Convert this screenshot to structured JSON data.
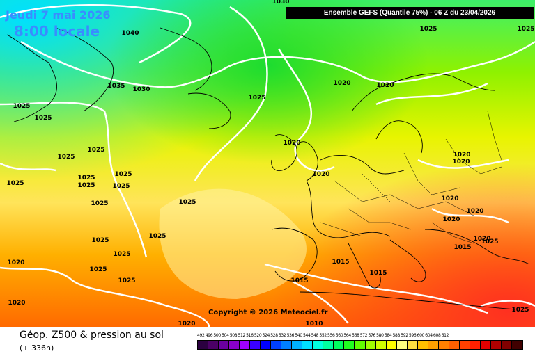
{
  "header": {
    "date": "Jeudi 7 mai 2026",
    "local_time": "8:00 locale",
    "model_info": "Ensemble GEFS  (Quantile 75%) - 06 Z du 23/04/2026"
  },
  "copyright": "Copyright © 2026 Meteociel.fr",
  "footer": {
    "parameter": "Géop. Z500 & pression au sol",
    "lead_time": "(+ 336h)"
  },
  "pressure_labels": [
    "1030",
    "1040",
    "1035",
    "1030",
    "1025",
    "1025",
    "1025",
    "1025",
    "1020",
    "1020",
    "1025",
    "1025",
    "1025",
    "1025",
    "1025",
    "1025",
    "1025",
    "1025",
    "1025",
    "1025",
    "1020",
    "1020",
    "1025",
    "1025",
    "1025",
    "1025",
    "1020",
    "1020",
    "1020",
    "1020",
    "1020",
    "1020",
    "1020",
    "1020",
    "1020",
    "1015",
    "1015",
    "1015",
    "1015",
    "1010",
    "1025",
    "1025",
    "1025"
  ],
  "legend": {
    "values": [
      "492",
      "496",
      "500",
      "504",
      "508",
      "512",
      "516",
      "520",
      "524",
      "528",
      "532",
      "536",
      "540",
      "544",
      "548",
      "552",
      "556",
      "560",
      "564",
      "568",
      "572",
      "576",
      "580",
      "584",
      "588",
      "592",
      "596",
      "600",
      "604",
      "608",
      "612"
    ],
    "colors": [
      "#2b0040",
      "#4b0066",
      "#6a00a0",
      "#8a00c8",
      "#a000ff",
      "#3a00ff",
      "#0000ff",
      "#0040ff",
      "#0080ff",
      "#00b0ff",
      "#00e0ff",
      "#00ffe0",
      "#00ffa0",
      "#00ff60",
      "#20ff20",
      "#60ff00",
      "#a0ff00",
      "#d0ff00",
      "#ffff00",
      "#ffff80",
      "#ffe040",
      "#ffc000",
      "#ffa000",
      "#ff8000",
      "#ff6000",
      "#ff4000",
      "#ff2000",
      "#e00000",
      "#b00000",
      "#800000",
      "#400000"
    ]
  }
}
